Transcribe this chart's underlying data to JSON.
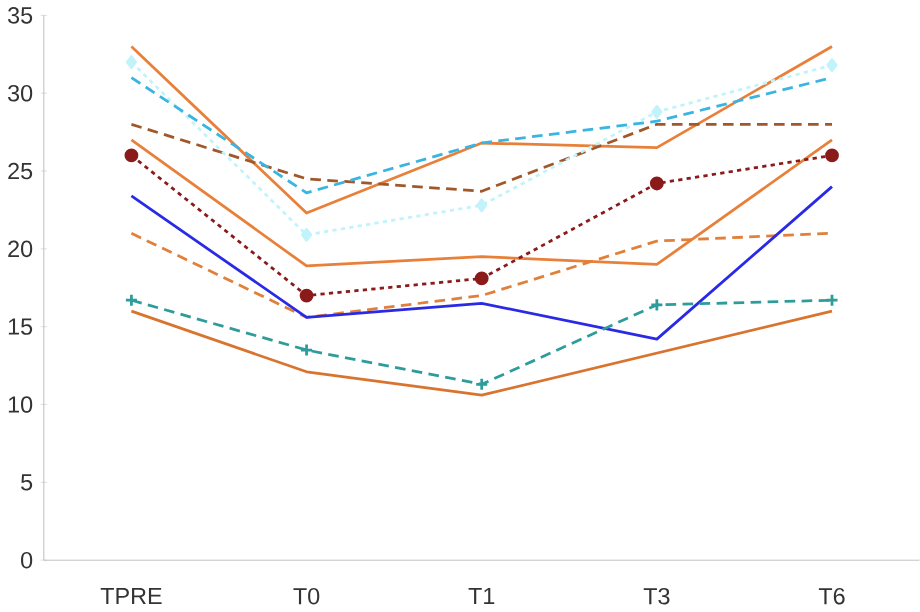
{
  "chart_data": {
    "type": "line",
    "categories": [
      "TPRE",
      "T0",
      "T1",
      "T3",
      "T6"
    ],
    "ylim": [
      0,
      35
    ],
    "yticks": [
      0,
      5,
      10,
      15,
      20,
      25,
      30,
      35
    ],
    "grid": false,
    "marker": "none",
    "line_style": "solid",
    "series": [
      {
        "color": "#e8803a",
        "values": [
          33,
          22.3,
          26.8,
          26.5,
          33
        ]
      },
      {
        "color": "#e8803a",
        "values": [
          27,
          18.9,
          19.5,
          19,
          27
        ]
      },
      {
        "color": "#d9742f",
        "values": [
          16,
          12.1,
          10.6,
          13.3,
          16
        ]
      },
      {
        "color": "#a0582a",
        "values": [
          28,
          24.5,
          23.7,
          28,
          28
        ],
        "line_style": "dashed"
      },
      {
        "color": "#e0803a",
        "values": [
          21,
          15.6,
          17,
          20.5,
          21
        ],
        "line_style": "dashed"
      },
      {
        "color": "#8b1a1a",
        "values": [
          26,
          17,
          18.1,
          24.2,
          26
        ],
        "line_style": "dotted",
        "marker": "circle"
      },
      {
        "color": "#2a2ae6",
        "values": [
          23.4,
          15.6,
          16.5,
          14.2,
          24
        ]
      },
      {
        "color": "#c2f3fb",
        "values": [
          32,
          20.9,
          22.8,
          28.8,
          31.8
        ],
        "line_style": "dotted",
        "marker": "diamond"
      },
      {
        "color": "#3ab4e0",
        "values": [
          31,
          23.6,
          26.8,
          28.2,
          31
        ],
        "line_style": "dashed"
      },
      {
        "color": "#2f9c9c",
        "values": [
          16.7,
          13.5,
          11.3,
          16.4,
          16.7
        ],
        "line_style": "dashed",
        "marker": "cross"
      }
    ]
  }
}
